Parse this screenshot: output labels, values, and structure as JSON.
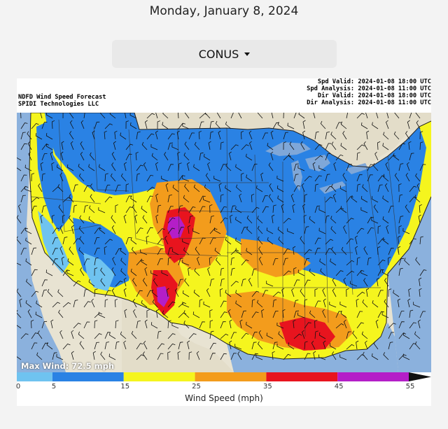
{
  "page": {
    "date": "Monday, January 8, 2024"
  },
  "region_select": {
    "value": "CONUS",
    "icon": "caret-down-icon"
  },
  "map_header": {
    "left_lines": [
      "NDFD Wind Speed Forecast",
      "SPIDI Technologies LLC"
    ],
    "right_lines": [
      "Spd Valid: 2024-01-08 18:00 UTC",
      "Spd Analysis: 2024-01-08 11:00 UTC",
      "Dir Valid: 2024-01-08 18:00 UTC",
      "Dir Analysis: 2024-01-08 11:00 UTC"
    ]
  },
  "map": {
    "max_wind": "Max Wind: 72.5 mph"
  },
  "legend": {
    "title": "Wind Speed (mph)",
    "ticks": [
      "0",
      "5",
      "15",
      "25",
      "35",
      "45",
      "55"
    ],
    "bins": [
      {
        "from": 0,
        "to": 5,
        "color": "#6fc3f0"
      },
      {
        "from": 5,
        "to": 15,
        "color": "#2a82e4"
      },
      {
        "from": 15,
        "to": 25,
        "color": "#f5f51e"
      },
      {
        "from": 25,
        "to": 35,
        "color": "#f39c1c"
      },
      {
        "from": 35,
        "to": 45,
        "color": "#e8141e"
      },
      {
        "from": 45,
        "to": 55,
        "color": "#b41ec8"
      }
    ],
    "over_color": "#111111"
  },
  "colors": {
    "land_outside": "#e8e3d2",
    "water": "#7fa7d8",
    "blue": "#2a82e4",
    "light_blue": "#6fc3f0",
    "yellow": "#f5f51e",
    "orange": "#f39c1c",
    "red": "#e8141e",
    "magenta": "#b41ec8"
  }
}
